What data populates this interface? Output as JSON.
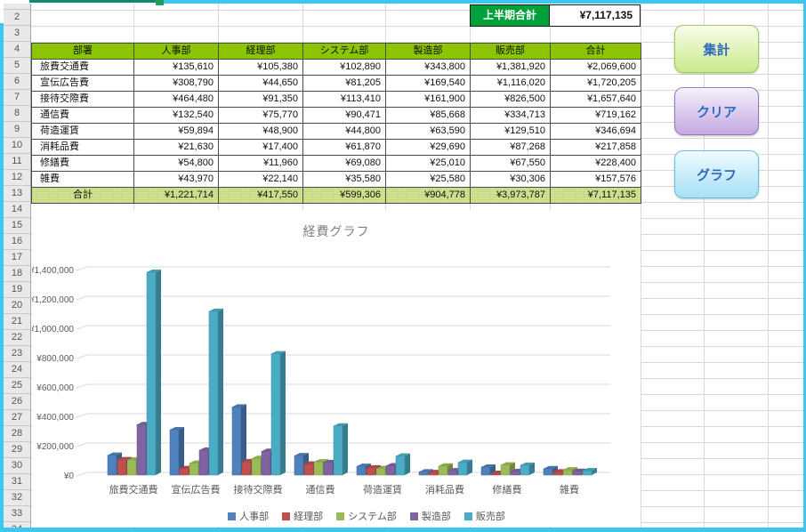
{
  "window": {
    "border_color": "#3cc6f0"
  },
  "summary": {
    "label": "上半期合計",
    "value": "¥7,117,135",
    "label_bg": "#00a13a"
  },
  "row_numbers": [
    "2",
    "3",
    "4",
    "5",
    "6",
    "7",
    "8",
    "9",
    "10",
    "11",
    "12",
    "13",
    "14",
    "15",
    "16",
    "17",
    "18",
    "19",
    "20",
    "21",
    "22",
    "23",
    "24",
    "25",
    "26",
    "27",
    "28",
    "29",
    "30",
    "31",
    "32",
    "33",
    "34"
  ],
  "table": {
    "header": [
      "部署",
      "人事部",
      "経理部",
      "システム部",
      "製造部",
      "販売部",
      "合計"
    ],
    "header_bg": "#8bc400",
    "total_bg": "#cfe08e",
    "rows": [
      {
        "label": "旅費交通費",
        "values": [
          "¥135,610",
          "¥105,380",
          "¥102,890",
          "¥343,800",
          "¥1,381,920",
          "¥2,069,600"
        ]
      },
      {
        "label": "宣伝広告費",
        "values": [
          "¥308,790",
          "¥44,650",
          "¥81,205",
          "¥169,540",
          "¥1,116,020",
          "¥1,720,205"
        ]
      },
      {
        "label": "接待交際費",
        "values": [
          "¥464,480",
          "¥91,350",
          "¥113,410",
          "¥161,900",
          "¥826,500",
          "¥1,657,640"
        ]
      },
      {
        "label": "通信費",
        "values": [
          "¥132,540",
          "¥75,770",
          "¥90,471",
          "¥85,668",
          "¥334,713",
          "¥719,162"
        ]
      },
      {
        "label": "荷造運賃",
        "values": [
          "¥59,894",
          "¥48,900",
          "¥44,800",
          "¥63,590",
          "¥129,510",
          "¥346,694"
        ]
      },
      {
        "label": "消耗品費",
        "values": [
          "¥21,630",
          "¥17,400",
          "¥61,870",
          "¥29,690",
          "¥87,268",
          "¥217,858"
        ]
      },
      {
        "label": "修繕費",
        "values": [
          "¥54,800",
          "¥11,960",
          "¥69,080",
          "¥25,010",
          "¥67,550",
          "¥228,400"
        ]
      },
      {
        "label": "雑費",
        "values": [
          "¥43,970",
          "¥22,140",
          "¥35,580",
          "¥25,580",
          "¥30,306",
          "¥157,576"
        ]
      }
    ],
    "total": {
      "label": "合計",
      "values": [
        "¥1,221,714",
        "¥417,550",
        "¥599,306",
        "¥904,778",
        "¥3,973,787",
        "¥7,117,135"
      ]
    }
  },
  "buttons": [
    {
      "name": "aggregate",
      "label": "集計",
      "top": "#f8fdeb",
      "bottom": "#c9ea8a",
      "border": "#9ccc52"
    },
    {
      "name": "clear",
      "label": "クリア",
      "top": "#f5f0fb",
      "bottom": "#c3a9e2",
      "border": "#9678c8"
    },
    {
      "name": "graph",
      "label": "グラフ",
      "top": "#effafe",
      "bottom": "#a7e0f6",
      "border": "#62bee4"
    }
  ],
  "chart_data": {
    "type": "bar",
    "style": "3d-clustered-column",
    "title": "経費グラフ",
    "categories": [
      "旅費交通費",
      "宣伝広告費",
      "接待交際費",
      "通信費",
      "荷造運賃",
      "消耗品費",
      "修繕費",
      "雑費"
    ],
    "series": [
      {
        "name": "人事部",
        "color": "#4F81BD",
        "values": [
          135610,
          308790,
          464480,
          132540,
          59894,
          21630,
          54800,
          43970
        ]
      },
      {
        "name": "経理部",
        "color": "#C0504D",
        "values": [
          105380,
          44650,
          91350,
          75770,
          48900,
          17400,
          11960,
          22140
        ]
      },
      {
        "name": "システム部",
        "color": "#9BBB59",
        "values": [
          102890,
          81205,
          113410,
          90471,
          44800,
          61870,
          69080,
          35580
        ]
      },
      {
        "name": "製造部",
        "color": "#8064A2",
        "values": [
          343800,
          169540,
          161900,
          85668,
          63590,
          29690,
          25010,
          25580
        ]
      },
      {
        "name": "販売部",
        "color": "#4BACC6",
        "values": [
          1381920,
          1116020,
          826500,
          334713,
          129510,
          87268,
          67550,
          30306
        ]
      }
    ],
    "xlabel": "",
    "ylabel": "",
    "ylim": [
      0,
      1400000
    ],
    "ytick_step": 200000,
    "ytick_labels": [
      "¥0",
      "¥200,000",
      "¥400,000",
      "¥600,000",
      "¥800,000",
      "¥1,000,000",
      "¥1,200,000",
      "¥1,400,000"
    ],
    "grid": true,
    "legend_position": "bottom"
  }
}
